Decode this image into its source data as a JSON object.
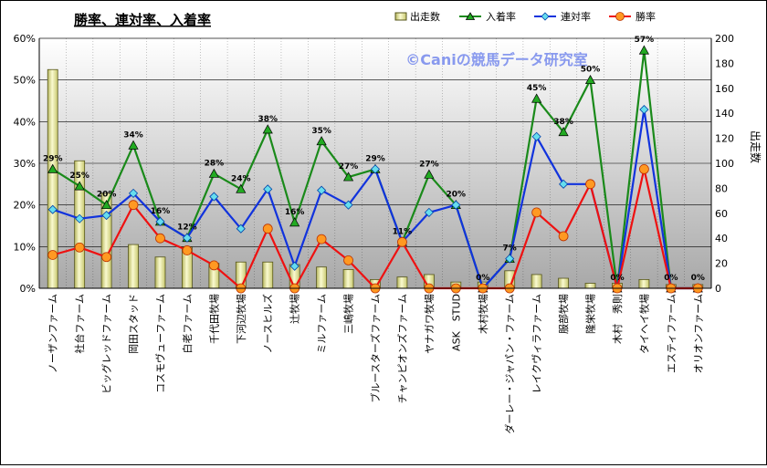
{
  "chart_data": {
    "type": "bar+line",
    "title": "勝率、連対率、入着率",
    "watermark": "©Caniの競馬データ研究室",
    "ylabel_right": "出走数",
    "ylim_left": [
      0,
      60
    ],
    "ylim_right": [
      0,
      200
    ],
    "left_ticks": [
      "0%",
      "10%",
      "20%",
      "30%",
      "40%",
      "50%",
      "60%"
    ],
    "right_ticks": [
      "0",
      "20",
      "40",
      "60",
      "80",
      "100",
      "120",
      "140",
      "160",
      "180",
      "200"
    ],
    "legend": {
      "bar": "出走数",
      "place": "入着率",
      "rentai": "連対率",
      "win": "勝率"
    },
    "categories": [
      "ノーザンファーム",
      "社台ファーム",
      "ビッグレッドファーム",
      "岡田スタッド",
      "コスモヴューファーム",
      "白老ファーム",
      "千代田牧場",
      "下河辺牧場",
      "ノースヒルズ",
      "辻牧場",
      "ミルファーム",
      "三嶋牧場",
      "ブルースターズファーム",
      "チャンピオンズファーム",
      "ヤナガワ牧場",
      "ASK　STUD",
      "木村牧場",
      "ダーレー・ジャパン・ファーム",
      "レイクヴィラファーム",
      "服部牧場",
      "隆栄牧場",
      "木村　秀則",
      "タイヘイ牧場",
      "エスティファーム",
      "オリオンファーム"
    ],
    "series": [
      {
        "name": "出走数",
        "values": [
          175,
          102,
          76,
          35,
          25,
          33,
          20,
          21,
          21,
          19,
          17,
          15,
          7,
          9,
          11,
          5,
          5,
          14,
          11,
          8,
          4,
          4,
          7,
          3,
          3
        ]
      },
      {
        "name": "入着率",
        "values": [
          28.6,
          24.5,
          20.0,
          34.3,
          16.0,
          12.1,
          27.5,
          23.8,
          38.1,
          15.8,
          35.3,
          26.7,
          28.6,
          11.1,
          27.3,
          20.0,
          0,
          7.1,
          45.5,
          37.5,
          50.0,
          0,
          57.1,
          0,
          0
        ]
      },
      {
        "name": "連対率",
        "values": [
          18.9,
          16.7,
          17.5,
          22.8,
          16.0,
          12.1,
          22.0,
          14.3,
          23.8,
          5.3,
          23.5,
          20.0,
          28.6,
          11.1,
          18.2,
          20.0,
          0,
          7.1,
          36.4,
          25.0,
          25.0,
          0,
          42.9,
          0,
          0
        ]
      },
      {
        "name": "勝率",
        "values": [
          8.0,
          9.8,
          7.5,
          20.0,
          12.0,
          9.1,
          5.5,
          0,
          14.3,
          0,
          11.8,
          6.7,
          0,
          11.1,
          0,
          0,
          0,
          0,
          18.2,
          12.5,
          25.0,
          0,
          28.6,
          0,
          0
        ]
      }
    ],
    "place_labels": [
      "29%",
      "25%",
      "20%",
      "34%",
      "16%",
      "12%",
      "28%",
      "24%",
      "38%",
      "16%",
      "35%",
      "27%",
      "29%",
      "11%",
      "27%",
      "20%",
      "0%",
      "7%",
      "45%",
      "38%",
      "50%",
      "0%",
      "57%",
      "0%",
      "0%"
    ]
  },
  "colors": {
    "bar_fill": "#e8e89a",
    "bar_edge": "#55551a",
    "place_line": "#1a8a1a",
    "rentai_line": "#1133dd",
    "win_line": "#ee1111",
    "win_marker": "#ff9922",
    "rentai_marker": "#66ddee",
    "watermark": "#8899ee"
  }
}
